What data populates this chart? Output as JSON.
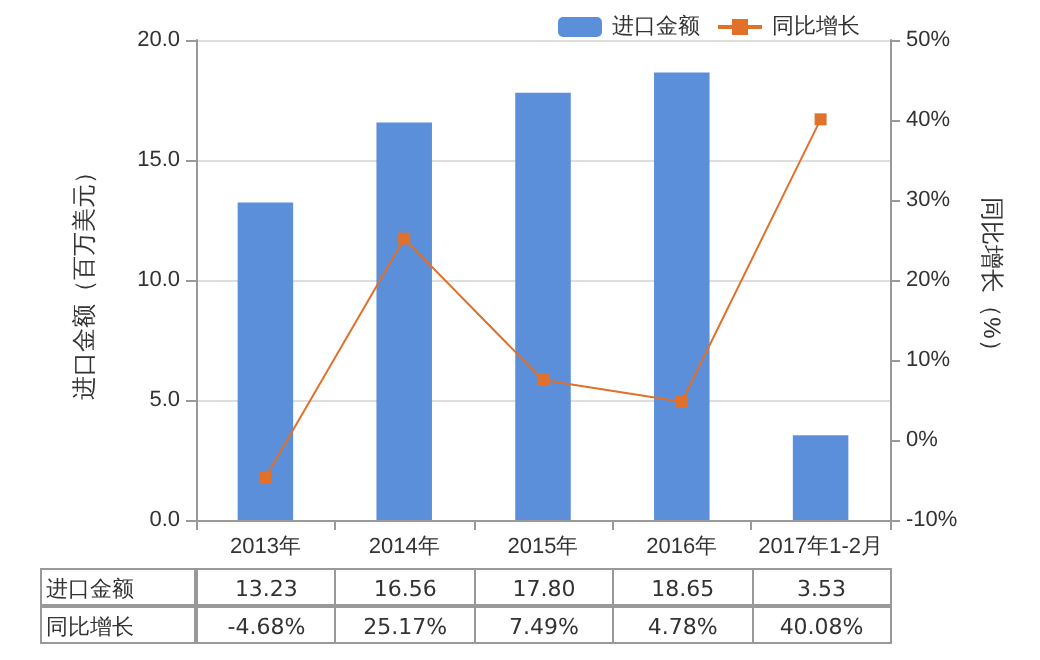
{
  "chart_data": {
    "type": "bar",
    "categories": [
      "2013年",
      "2014年",
      "2015年",
      "2016年",
      "2017年1-2月"
    ],
    "ylabel": "进口金额（百万美元）",
    "y2label": "同比增长（%）",
    "series": [
      {
        "name": "进口金额",
        "color": "#5b8fd9",
        "values": [
          13.23,
          16.56,
          17.8,
          18.65,
          3.53
        ],
        "value_labels": [
          "13.23",
          "16.56",
          "17.80",
          "18.65",
          "3.53"
        ]
      },
      {
        "name": "同比增长",
        "type": "line",
        "axis": "y2",
        "color": "#e0702a",
        "values": [
          -4.68,
          25.17,
          7.49,
          4.78,
          40.08
        ],
        "value_labels": [
          "-4.68%",
          "25.17%",
          "7.49%",
          "4.78%",
          "40.08%"
        ]
      }
    ],
    "ylim": [
      0,
      20
    ],
    "yticks": [
      {
        "value": 0,
        "label": "0.0"
      },
      {
        "value": 5,
        "label": "5.0"
      },
      {
        "value": 10,
        "label": "10.0"
      },
      {
        "value": 15,
        "label": "15.0"
      },
      {
        "value": 20,
        "label": "20.0"
      }
    ],
    "y2lim": [
      -10,
      50
    ],
    "y2ticks": [
      {
        "value": -10,
        "label": "-10%"
      },
      {
        "value": 0,
        "label": "0%"
      },
      {
        "value": 10,
        "label": "10%"
      },
      {
        "value": 20,
        "label": "20%"
      },
      {
        "value": 30,
        "label": "30%"
      },
      {
        "value": 40,
        "label": "40%"
      },
      {
        "value": 50,
        "label": "50%"
      }
    ],
    "grid": "y",
    "legend": "top right",
    "marker": "square",
    "line_style": "solid"
  }
}
